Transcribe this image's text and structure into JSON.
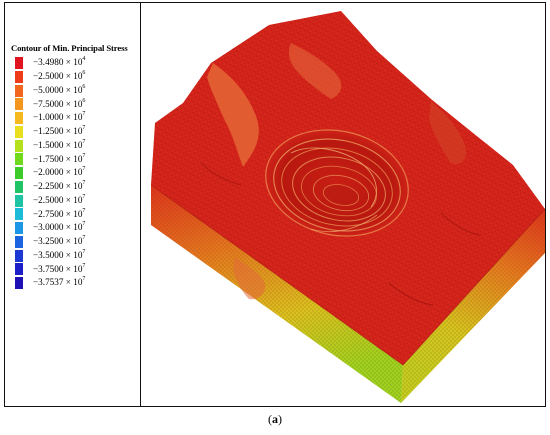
{
  "legend": {
    "title": "Contour of Min. Principal Stress",
    "items": [
      {
        "mantissa": "−3.4980",
        "exponent": "4",
        "color": "#e0141e"
      },
      {
        "mantissa": "−2.5000",
        "exponent": "6",
        "color": "#ee3c1a"
      },
      {
        "mantissa": "−5.0000",
        "exponent": "6",
        "color": "#f2661e"
      },
      {
        "mantissa": "−7.5000",
        "exponent": "6",
        "color": "#f4951e"
      },
      {
        "mantissa": "−1.0000",
        "exponent": "7",
        "color": "#f5b81e"
      },
      {
        "mantissa": "−1.2500",
        "exponent": "7",
        "color": "#eadf1e"
      },
      {
        "mantissa": "−1.5000",
        "exponent": "7",
        "color": "#b4e01e"
      },
      {
        "mantissa": "−1.7500",
        "exponent": "7",
        "color": "#72d81e"
      },
      {
        "mantissa": "−2.0000",
        "exponent": "7",
        "color": "#3ccb28"
      },
      {
        "mantissa": "−2.2500",
        "exponent": "7",
        "color": "#20c464"
      },
      {
        "mantissa": "−2.5000",
        "exponent": "7",
        "color": "#1cc4a4"
      },
      {
        "mantissa": "−2.7500",
        "exponent": "7",
        "color": "#1cbcd8"
      },
      {
        "mantissa": "−3.0000",
        "exponent": "7",
        "color": "#1c96e6"
      },
      {
        "mantissa": "−3.2500",
        "exponent": "7",
        "color": "#1c64e0"
      },
      {
        "mantissa": "−3.5000",
        "exponent": "7",
        "color": "#1c38d4"
      },
      {
        "mantissa": "−3.7500",
        "exponent": "7",
        "color": "#1c1ec8"
      },
      {
        "mantissa": "−3.7537",
        "exponent": "7",
        "color": "#1e10b4"
      }
    ]
  },
  "caption": {
    "open": "(",
    "letter": "a",
    "close": ")"
  },
  "colors": {
    "surface_red": "#d7261c",
    "surface_dark_red": "#a8140e",
    "side_orange": "#e0641e",
    "side_yellow": "#d8c81e",
    "side_green": "#a8d21e",
    "frame": "#111111"
  }
}
